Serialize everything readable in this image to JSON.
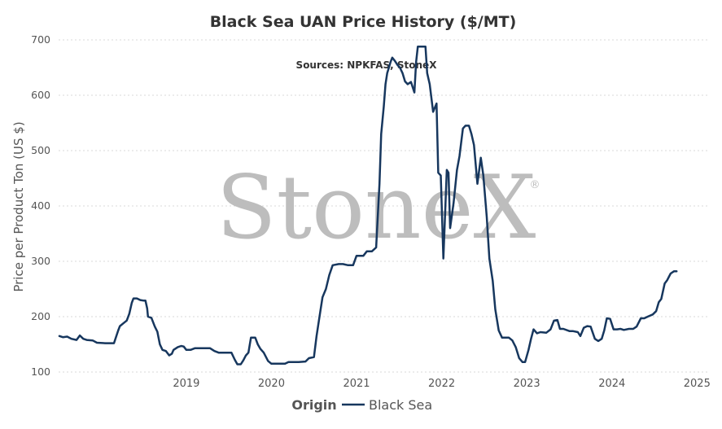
{
  "chart_data": {
    "type": "line",
    "title": "Black Sea UAN Price History ($/MT)",
    "subtitle": "Sources: NPKFAS, StoneX",
    "ylabel": "Price per Product Ton (US $)",
    "xlabel": "",
    "ylim": [
      100,
      700
    ],
    "xlim": [
      2018.0,
      2025.65
    ],
    "y_ticks": [
      "100",
      "200",
      "300",
      "400",
      "500",
      "600",
      "700"
    ],
    "x_ticks": [
      "2019",
      "2020",
      "2021",
      "2022",
      "2023",
      "2024",
      "2025"
    ],
    "grid": "horizontal dotted",
    "watermark": "StoneX",
    "watermark_mark": "®",
    "legend": {
      "title": "Origin",
      "placement": "bottom-center",
      "entries": [
        "Black Sea"
      ]
    },
    "colors": {
      "line": "#17375e",
      "grid": "#d8d8d8",
      "watermark": "#bdbdbd"
    },
    "series": [
      {
        "name": "Black Sea",
        "points": [
          [
            2018.01,
            165
          ],
          [
            2018.05,
            163
          ],
          [
            2018.1,
            164
          ],
          [
            2018.15,
            160
          ],
          [
            2018.21,
            158
          ],
          [
            2018.25,
            166
          ],
          [
            2018.29,
            160
          ],
          [
            2018.33,
            158
          ],
          [
            2018.4,
            157
          ],
          [
            2018.45,
            153
          ],
          [
            2018.55,
            152
          ],
          [
            2018.62,
            152
          ],
          [
            2018.65,
            152
          ],
          [
            2018.7,
            175
          ],
          [
            2018.72,
            183
          ],
          [
            2018.76,
            188
          ],
          [
            2018.8,
            193
          ],
          [
            2018.83,
            205
          ],
          [
            2018.86,
            225
          ],
          [
            2018.88,
            233
          ],
          [
            2018.92,
            233
          ],
          [
            2018.96,
            230
          ],
          [
            2019.0,
            229
          ],
          [
            2019.02,
            229
          ],
          [
            2019.04,
            215
          ],
          [
            2019.05,
            200
          ],
          [
            2019.09,
            198
          ],
          [
            2019.13,
            182
          ],
          [
            2019.16,
            173
          ],
          [
            2019.19,
            150
          ],
          [
            2019.22,
            140
          ],
          [
            2019.26,
            138
          ],
          [
            2019.3,
            130
          ],
          [
            2019.33,
            133
          ],
          [
            2019.35,
            140
          ],
          [
            2019.4,
            145
          ],
          [
            2019.44,
            147
          ],
          [
            2019.47,
            146
          ],
          [
            2019.5,
            140
          ],
          [
            2019.55,
            140
          ],
          [
            2019.6,
            143
          ],
          [
            2019.7,
            143
          ],
          [
            2019.78,
            143
          ],
          [
            2019.83,
            138
          ],
          [
            2019.88,
            135
          ],
          [
            2020.0,
            135
          ],
          [
            2020.03,
            135
          ],
          [
            2020.07,
            122
          ],
          [
            2020.1,
            114
          ],
          [
            2020.14,
            114
          ],
          [
            2020.17,
            121
          ],
          [
            2020.2,
            130
          ],
          [
            2020.23,
            135
          ],
          [
            2020.26,
            162
          ],
          [
            2020.31,
            162
          ],
          [
            2020.34,
            150
          ],
          [
            2020.37,
            142
          ],
          [
            2020.41,
            135
          ],
          [
            2020.46,
            120
          ],
          [
            2020.5,
            115
          ],
          [
            2020.58,
            115
          ],
          [
            2020.66,
            115
          ],
          [
            2020.7,
            118
          ],
          [
            2020.78,
            118
          ],
          [
            2020.82,
            118
          ],
          [
            2020.9,
            119
          ],
          [
            2020.94,
            125
          ],
          [
            2021.0,
            127
          ],
          [
            2021.03,
            165
          ],
          [
            2021.06,
            195
          ],
          [
            2021.1,
            235
          ],
          [
            2021.14,
            250
          ],
          [
            2021.18,
            275
          ],
          [
            2021.22,
            293
          ],
          [
            2021.29,
            295
          ],
          [
            2021.34,
            295
          ],
          [
            2021.4,
            293
          ],
          [
            2021.46,
            293
          ],
          [
            2021.5,
            310
          ],
          [
            2021.58,
            310
          ],
          [
            2021.62,
            318
          ],
          [
            2021.68,
            318
          ],
          [
            2021.73,
            325
          ],
          [
            2021.77,
            440
          ],
          [
            2021.79,
            530
          ],
          [
            2021.82,
            580
          ],
          [
            2021.84,
            620
          ],
          [
            2021.86,
            640
          ],
          [
            2021.88,
            650
          ],
          [
            2021.9,
            660
          ],
          [
            2021.92,
            668
          ],
          [
            2021.95,
            662
          ],
          [
            2021.98,
            655
          ],
          [
            2022.01,
            650
          ],
          [
            2022.04,
            640
          ],
          [
            2022.07,
            625
          ],
          [
            2022.1,
            620
          ],
          [
            2022.14,
            624
          ],
          [
            2022.18,
            605
          ],
          [
            2022.2,
            660
          ],
          [
            2022.22,
            688
          ],
          [
            2022.27,
            688
          ],
          [
            2022.31,
            688
          ],
          [
            2022.33,
            640
          ],
          [
            2022.36,
            620
          ],
          [
            2022.4,
            570
          ],
          [
            2022.44,
            585
          ],
          [
            2022.46,
            460
          ],
          [
            2022.49,
            455
          ],
          [
            2022.52,
            305
          ],
          [
            2022.56,
            465
          ],
          [
            2022.58,
            460
          ],
          [
            2022.6,
            360
          ],
          [
            2022.64,
            405
          ],
          [
            2022.68,
            465
          ],
          [
            2022.71,
            490
          ],
          [
            2022.75,
            540
          ],
          [
            2022.78,
            545
          ],
          [
            2022.82,
            545
          ],
          [
            2022.85,
            530
          ],
          [
            2022.88,
            510
          ],
          [
            2022.92,
            440
          ],
          [
            2022.96,
            487
          ],
          [
            2022.99,
            455
          ],
          [
            2023.03,
            380
          ],
          [
            2023.06,
            305
          ],
          [
            2023.1,
            265
          ],
          [
            2023.13,
            213
          ],
          [
            2023.17,
            175
          ],
          [
            2023.21,
            162
          ],
          [
            2023.29,
            162
          ],
          [
            2023.33,
            157
          ],
          [
            2023.37,
            145
          ],
          [
            2023.41,
            125
          ],
          [
            2023.45,
            118
          ],
          [
            2023.48,
            118
          ],
          [
            2023.52,
            140
          ],
          [
            2023.55,
            160
          ],
          [
            2023.58,
            177
          ],
          [
            2023.62,
            170
          ],
          [
            2023.66,
            172
          ],
          [
            2023.73,
            171
          ],
          [
            2023.78,
            177
          ],
          [
            2023.82,
            193
          ],
          [
            2023.86,
            194
          ],
          [
            2023.89,
            178
          ],
          [
            2023.93,
            178
          ],
          [
            2024.0,
            174
          ],
          [
            2024.04,
            174
          ],
          [
            2024.1,
            172
          ],
          [
            2024.13,
            165
          ],
          [
            2024.17,
            180
          ],
          [
            2024.21,
            183
          ],
          [
            2024.25,
            182
          ],
          [
            2024.3,
            160
          ],
          [
            2024.34,
            156
          ],
          [
            2024.38,
            160
          ],
          [
            2024.41,
            175
          ],
          [
            2024.44,
            197
          ],
          [
            2024.48,
            196
          ],
          [
            2024.52,
            177
          ],
          [
            2024.56,
            177
          ],
          [
            2024.6,
            178
          ],
          [
            2024.64,
            176
          ],
          [
            2024.7,
            178
          ],
          [
            2024.75,
            178
          ],
          [
            2024.79,
            182
          ],
          [
            2024.84,
            197
          ],
          [
            2024.88,
            197
          ],
          [
            2024.92,
            200
          ],
          [
            2024.98,
            204
          ],
          [
            2025.02,
            210
          ],
          [
            2025.05,
            226
          ],
          [
            2025.08,
            232
          ],
          [
            2025.12,
            260
          ],
          [
            2025.15,
            266
          ],
          [
            2025.19,
            278
          ],
          [
            2025.23,
            282
          ],
          [
            2025.26,
            282
          ]
        ]
      }
    ]
  }
}
